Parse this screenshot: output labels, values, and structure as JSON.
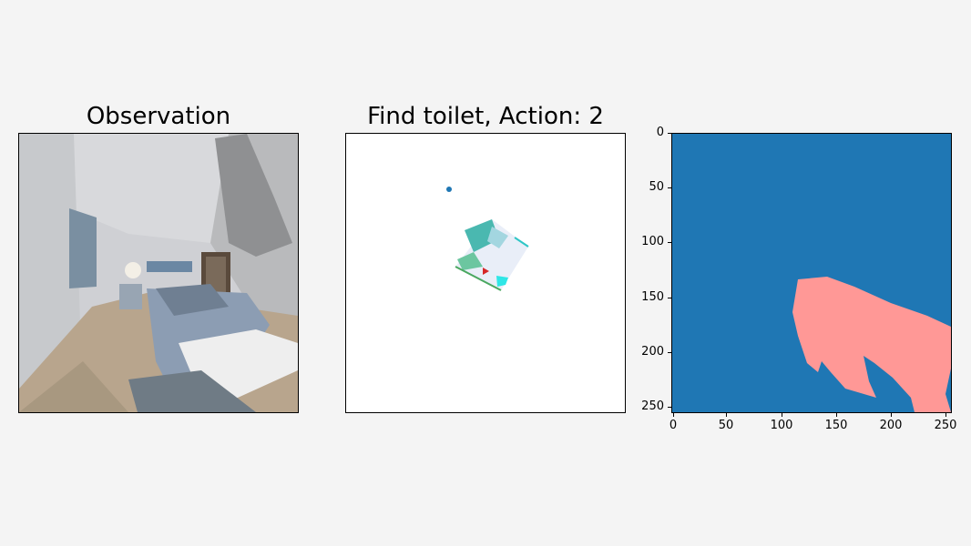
{
  "panels": {
    "observation": {
      "title": "Observation"
    },
    "map": {
      "title": "Find toilet, Action: 2",
      "colors": {
        "goal_dot": "#1f77b4",
        "agent": "#d62728",
        "explored": "#e8eef8",
        "obstacle": "#4ab8b0"
      }
    },
    "segmentation": {
      "colors": {
        "background": "#1f77b4",
        "mask": "#ff9896"
      },
      "x_ticks": [
        "0",
        "50",
        "100",
        "150",
        "200",
        "250"
      ],
      "y_ticks": [
        "0",
        "50",
        "100",
        "150",
        "200",
        "250"
      ]
    }
  }
}
